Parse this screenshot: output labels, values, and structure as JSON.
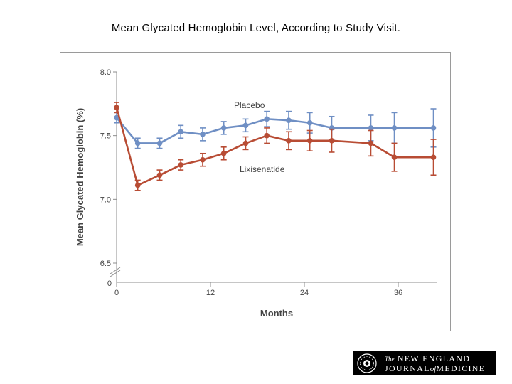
{
  "slide": {
    "title": "Mean Glycated Hemoglobin Level, According to Study Visit."
  },
  "logo": {
    "the": "The",
    "line1": "NEW ENGLAND",
    "line2a": "JOURNAL",
    "of": "of",
    "line2b": "MEDICINE"
  },
  "colors": {
    "placebo": "#6f8fc4",
    "lixisenatide": "#b84c34",
    "axis": "#8c8c8c",
    "text": "#444444"
  },
  "chart_data": {
    "type": "line",
    "title": "",
    "xlabel": "Months",
    "ylabel": "Mean Glycated Hemoglobin (%)",
    "xlim": [
      0,
      41
    ],
    "ylim": [
      6.5,
      8.0
    ],
    "xticks": [
      0,
      12,
      24,
      36
    ],
    "xtick_labels": [
      "0",
      "12",
      "24",
      "36"
    ],
    "yticks": [
      6.5,
      7.0,
      7.5,
      8.0
    ],
    "ytick_labels": [
      "6.5",
      "7.0",
      "7.5",
      "8.0"
    ],
    "y_axis_zero_label": "0",
    "axis_break": true,
    "grid": false,
    "series": [
      {
        "name": "Placebo",
        "color": "#6f8fc4",
        "x": [
          0,
          2.7,
          5.5,
          8.2,
          11,
          13.7,
          16.5,
          19.2,
          22,
          24.7,
          27.5,
          32.5,
          35.5,
          40.5
        ],
        "y": [
          7.64,
          7.44,
          7.44,
          7.53,
          7.51,
          7.56,
          7.58,
          7.63,
          7.62,
          7.6,
          7.56,
          7.56,
          7.56,
          7.56
        ],
        "err": [
          0.04,
          0.04,
          0.04,
          0.05,
          0.05,
          0.05,
          0.05,
          0.06,
          0.07,
          0.08,
          0.09,
          0.1,
          0.12,
          0.15
        ]
      },
      {
        "name": "Lixisenatide",
        "color": "#b84c34",
        "x": [
          0,
          2.7,
          5.5,
          8.2,
          11,
          13.7,
          16.5,
          19.2,
          22,
          24.7,
          27.5,
          32.5,
          35.5,
          40.5
        ],
        "y": [
          7.72,
          7.11,
          7.19,
          7.27,
          7.31,
          7.36,
          7.44,
          7.5,
          7.46,
          7.46,
          7.46,
          7.44,
          7.33,
          7.33
        ],
        "err": [
          0.04,
          0.04,
          0.04,
          0.04,
          0.05,
          0.05,
          0.05,
          0.06,
          0.07,
          0.08,
          0.09,
          0.1,
          0.11,
          0.14
        ]
      }
    ],
    "annotations": [
      {
        "text": "Placebo",
        "series": "Placebo"
      },
      {
        "text": "Lixisenatide",
        "series": "Lixisenatide"
      }
    ]
  }
}
